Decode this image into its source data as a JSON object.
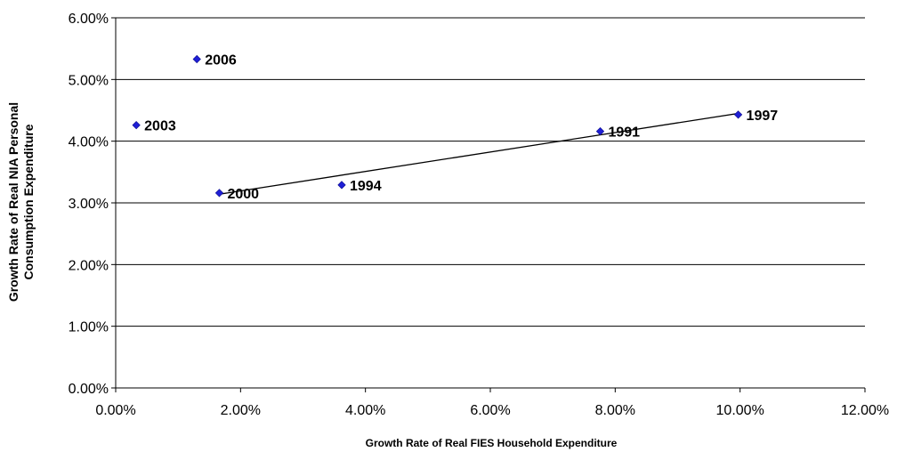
{
  "chart_data": {
    "type": "scatter",
    "title": "",
    "xlabel": "Growth Rate of Real FIES Household Expenditure",
    "ylabel_lines": [
      "Growth Rate of Real NIA Personal",
      "Consumption Expenditure"
    ],
    "xlim": [
      0,
      12
    ],
    "ylim": [
      0,
      6
    ],
    "x_ticks": [
      "0.00%",
      "2.00%",
      "4.00%",
      "6.00%",
      "8.00%",
      "10.00%",
      "12.00%"
    ],
    "y_ticks": [
      "0.00%",
      "1.00%",
      "2.00%",
      "3.00%",
      "4.00%",
      "5.00%",
      "6.00%"
    ],
    "grid": "horizontal",
    "legend": "none",
    "points": [
      {
        "label": "2006",
        "x": 1.3,
        "y": 5.33
      },
      {
        "label": "2003",
        "x": 0.33,
        "y": 4.26
      },
      {
        "label": "2000",
        "x": 1.66,
        "y": 3.16
      },
      {
        "label": "1994",
        "x": 3.62,
        "y": 3.29
      },
      {
        "label": "1991",
        "x": 7.76,
        "y": 4.16
      },
      {
        "label": "1997",
        "x": 9.97,
        "y": 4.43
      }
    ],
    "trendline": {
      "x_start": 1.66,
      "y_start": 3.14,
      "x_end": 9.97,
      "y_end": 4.45
    },
    "colors": {
      "marker": "#1f1fd6",
      "line": "#000000",
      "grid": "#000000"
    }
  }
}
